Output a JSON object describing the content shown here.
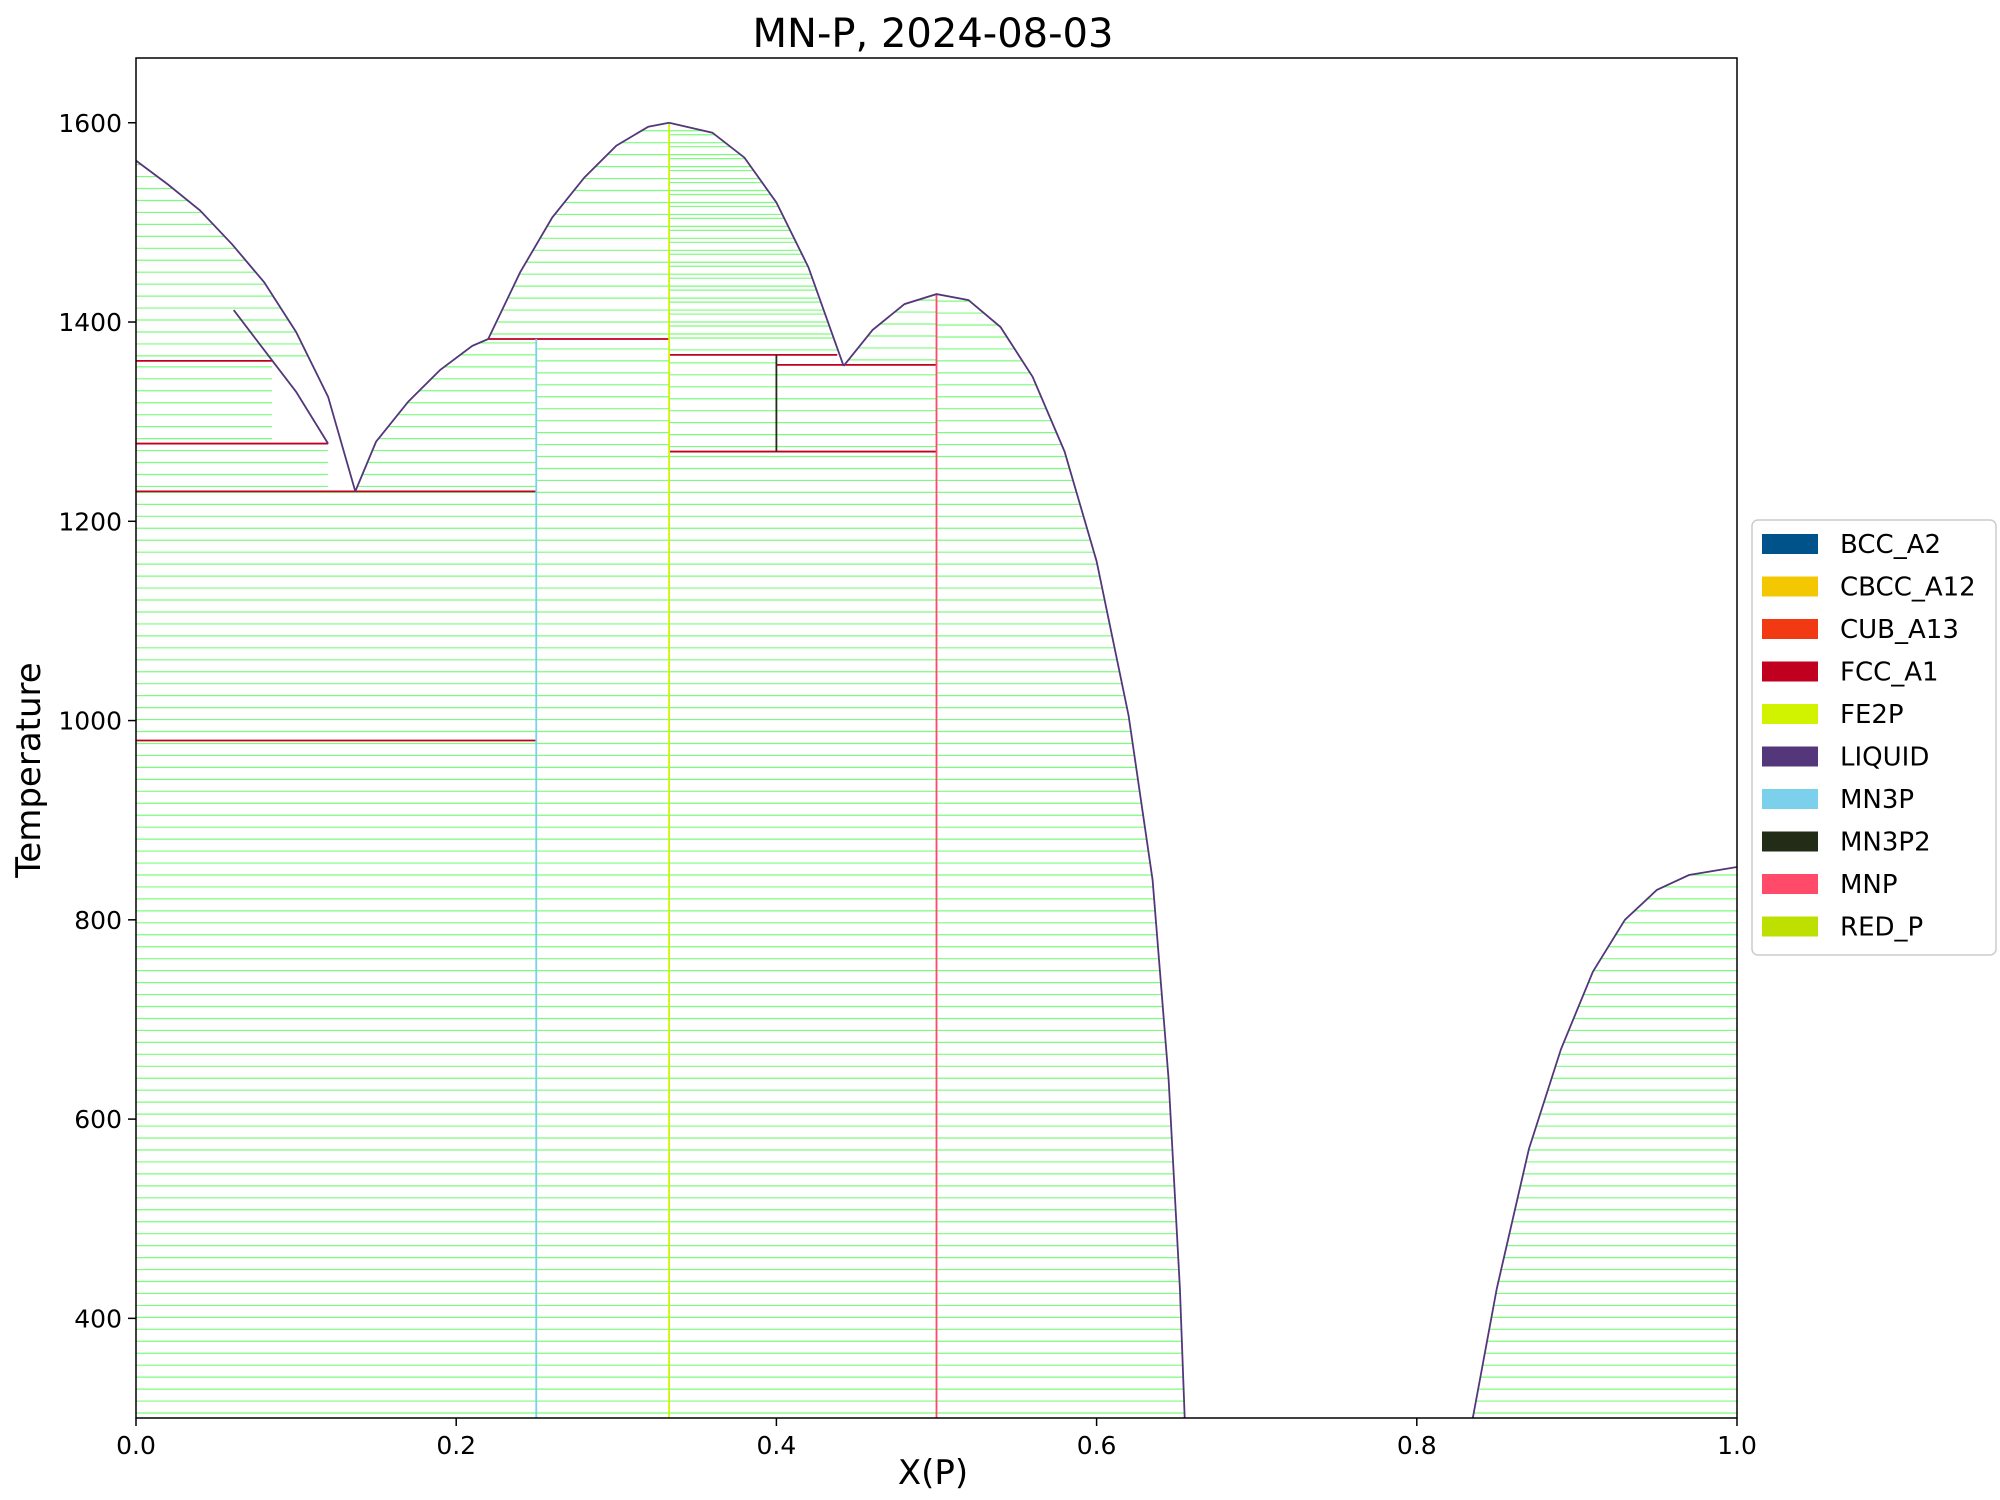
{
  "chart_data": {
    "type": "line",
    "title": "MN-P, 2024-08-03",
    "xlabel": "X(P)",
    "ylabel": "Temperature",
    "xlim": [
      0.0,
      1.0
    ],
    "ylim": [
      300,
      1665
    ],
    "x_ticks": [
      "0.0",
      "0.2",
      "0.4",
      "0.6",
      "0.8",
      "1.0"
    ],
    "y_ticks": [
      "400",
      "600",
      "800",
      "1000",
      "1200",
      "1400",
      "1600"
    ],
    "legend": {
      "position": "right",
      "entries": [
        {
          "name": "BCC_A2",
          "color": "#00538a"
        },
        {
          "name": "CBCC_A12",
          "color": "#f4c800"
        },
        {
          "name": "CUB_A13",
          "color": "#f13a13"
        },
        {
          "name": "FCC_A1",
          "color": "#c10020"
        },
        {
          "name": "FE2P",
          "color": "#d2f300"
        },
        {
          "name": "LIQUID",
          "color": "#53377a"
        },
        {
          "name": "MN3P",
          "color": "#7bd0ec"
        },
        {
          "name": "MN3P2",
          "color": "#232c16"
        },
        {
          "name": "MNP",
          "color": "#ff4a69"
        },
        {
          "name": "RED_P",
          "color": "#bee000"
        }
      ]
    },
    "tie_line_color": "#7cfc7c",
    "liquidus": [
      {
        "name": "LIQUID",
        "points": [
          [
            0.0,
            1562
          ],
          [
            0.02,
            1538
          ],
          [
            0.04,
            1512
          ],
          [
            0.06,
            1478
          ],
          [
            0.08,
            1440
          ],
          [
            0.1,
            1390
          ],
          [
            0.12,
            1325
          ],
          [
            0.137,
            1230
          ]
        ]
      },
      {
        "name": "LIQUID",
        "points": [
          [
            0.137,
            1230
          ],
          [
            0.15,
            1280
          ],
          [
            0.17,
            1320
          ],
          [
            0.19,
            1352
          ],
          [
            0.21,
            1376
          ],
          [
            0.22,
            1383
          ]
        ]
      },
      {
        "name": "LIQUID",
        "points": [
          [
            0.22,
            1383
          ],
          [
            0.24,
            1450
          ],
          [
            0.26,
            1505
          ],
          [
            0.28,
            1545
          ],
          [
            0.3,
            1577
          ],
          [
            0.32,
            1596
          ],
          [
            0.333,
            1600
          ]
        ]
      },
      {
        "name": "LIQUID",
        "points": [
          [
            0.333,
            1600
          ],
          [
            0.36,
            1590
          ],
          [
            0.38,
            1565
          ],
          [
            0.4,
            1520
          ],
          [
            0.42,
            1455
          ],
          [
            0.442,
            1356
          ]
        ]
      },
      {
        "name": "LIQUID",
        "points": [
          [
            0.442,
            1356
          ],
          [
            0.46,
            1392
          ],
          [
            0.48,
            1418
          ],
          [
            0.5,
            1428
          ],
          [
            0.52,
            1422
          ],
          [
            0.54,
            1395
          ],
          [
            0.56,
            1345
          ],
          [
            0.58,
            1270
          ],
          [
            0.6,
            1160
          ],
          [
            0.62,
            1005
          ],
          [
            0.635,
            840
          ],
          [
            0.645,
            640
          ],
          [
            0.652,
            430
          ],
          [
            0.655,
            300
          ]
        ]
      },
      {
        "name": "LIQUID",
        "points": [
          [
            0.835,
            300
          ],
          [
            0.85,
            430
          ],
          [
            0.87,
            570
          ],
          [
            0.89,
            670
          ],
          [
            0.91,
            748
          ],
          [
            0.93,
            800
          ],
          [
            0.95,
            830
          ],
          [
            0.97,
            845
          ],
          [
            1.0,
            853
          ]
        ]
      },
      {
        "name": "LIQUID",
        "points": [
          [
            0.061,
            1412
          ],
          [
            0.08,
            1372
          ],
          [
            0.1,
            1330
          ],
          [
            0.12,
            1278
          ]
        ]
      }
    ],
    "phase_boundaries": [
      {
        "name": "MN3P",
        "x": 0.25,
        "y": [
          300,
          1383
        ]
      },
      {
        "name": "FE2P",
        "x": 0.333,
        "y": [
          300,
          1600
        ]
      },
      {
        "name": "MNP",
        "x": 0.5,
        "y": [
          300,
          1428
        ]
      },
      {
        "name": "MN3P2",
        "x": 0.4,
        "y": [
          1270,
          1367
        ]
      }
    ],
    "invariant_lines": [
      {
        "color": "#c10020",
        "x": [
          0.0,
          0.25
        ],
        "y": 980
      },
      {
        "color": "#c10020",
        "x": [
          0.0,
          0.25
        ],
        "y": 1230
      },
      {
        "color": "#c10020",
        "x": [
          0.0,
          0.12
        ],
        "y": 1278
      },
      {
        "color": "#c10020",
        "x": [
          0.0,
          0.085
        ],
        "y": 1361
      },
      {
        "color": "#c10020",
        "x": [
          0.22,
          0.333
        ],
        "y": 1383
      },
      {
        "color": "#c10020",
        "x": [
          0.333,
          0.438
        ],
        "y": 1367
      },
      {
        "color": "#c10020",
        "x": [
          0.4,
          0.5
        ],
        "y": 1357
      },
      {
        "color": "#c10020",
        "x": [
          0.333,
          0.5
        ],
        "y": 1270
      }
    ],
    "tie_line_regions": [
      {
        "kind": "hline",
        "x": [
          0.0,
          0.25
        ],
        "y": [
          300,
          1230
        ]
      },
      {
        "kind": "hline",
        "x": [
          0.25,
          0.333
        ],
        "y": [
          300,
          1383
        ]
      },
      {
        "kind": "hline",
        "x": [
          0.333,
          0.5
        ],
        "y": [
          300,
          1270
        ]
      },
      {
        "kind": "hline",
        "x": [
          0.0,
          0.12
        ],
        "y": [
          1230,
          1278
        ]
      },
      {
        "kind": "hline",
        "x": [
          0.0,
          0.085
        ],
        "y": [
          1278,
          1361
        ]
      },
      {
        "kind": "hline",
        "x": [
          0.333,
          0.4
        ],
        "y": [
          1270,
          1367
        ]
      },
      {
        "kind": "hline",
        "x": [
          0.4,
          0.5
        ],
        "y": [
          1270,
          1357
        ]
      },
      {
        "kind": "hline",
        "x": [
          0.25,
          0.333
        ],
        "y": [
          1383,
          1600
        ]
      },
      {
        "kind": "curve",
        "segment": 0,
        "x_from": 0.0,
        "y_lo": 1361
      },
      {
        "kind": "curve",
        "segment": 1,
        "x_from": 0.137,
        "y_lo": 1230
      },
      {
        "kind": "curve",
        "segment": 2,
        "x_from": 0.22,
        "y_lo": 1383
      },
      {
        "kind": "curve",
        "segment": 3,
        "x_from": 0.333,
        "y_lo": 1367
      },
      {
        "kind": "curve",
        "segment": 4,
        "x_from": 0.442,
        "y_lo": 1357
      },
      {
        "kind": "curve",
        "segment": 4,
        "x_from": 0.5,
        "y_lo": 300
      },
      {
        "kind": "curve",
        "segment": 5,
        "x_from": 0.835,
        "y_lo": 300
      }
    ]
  }
}
